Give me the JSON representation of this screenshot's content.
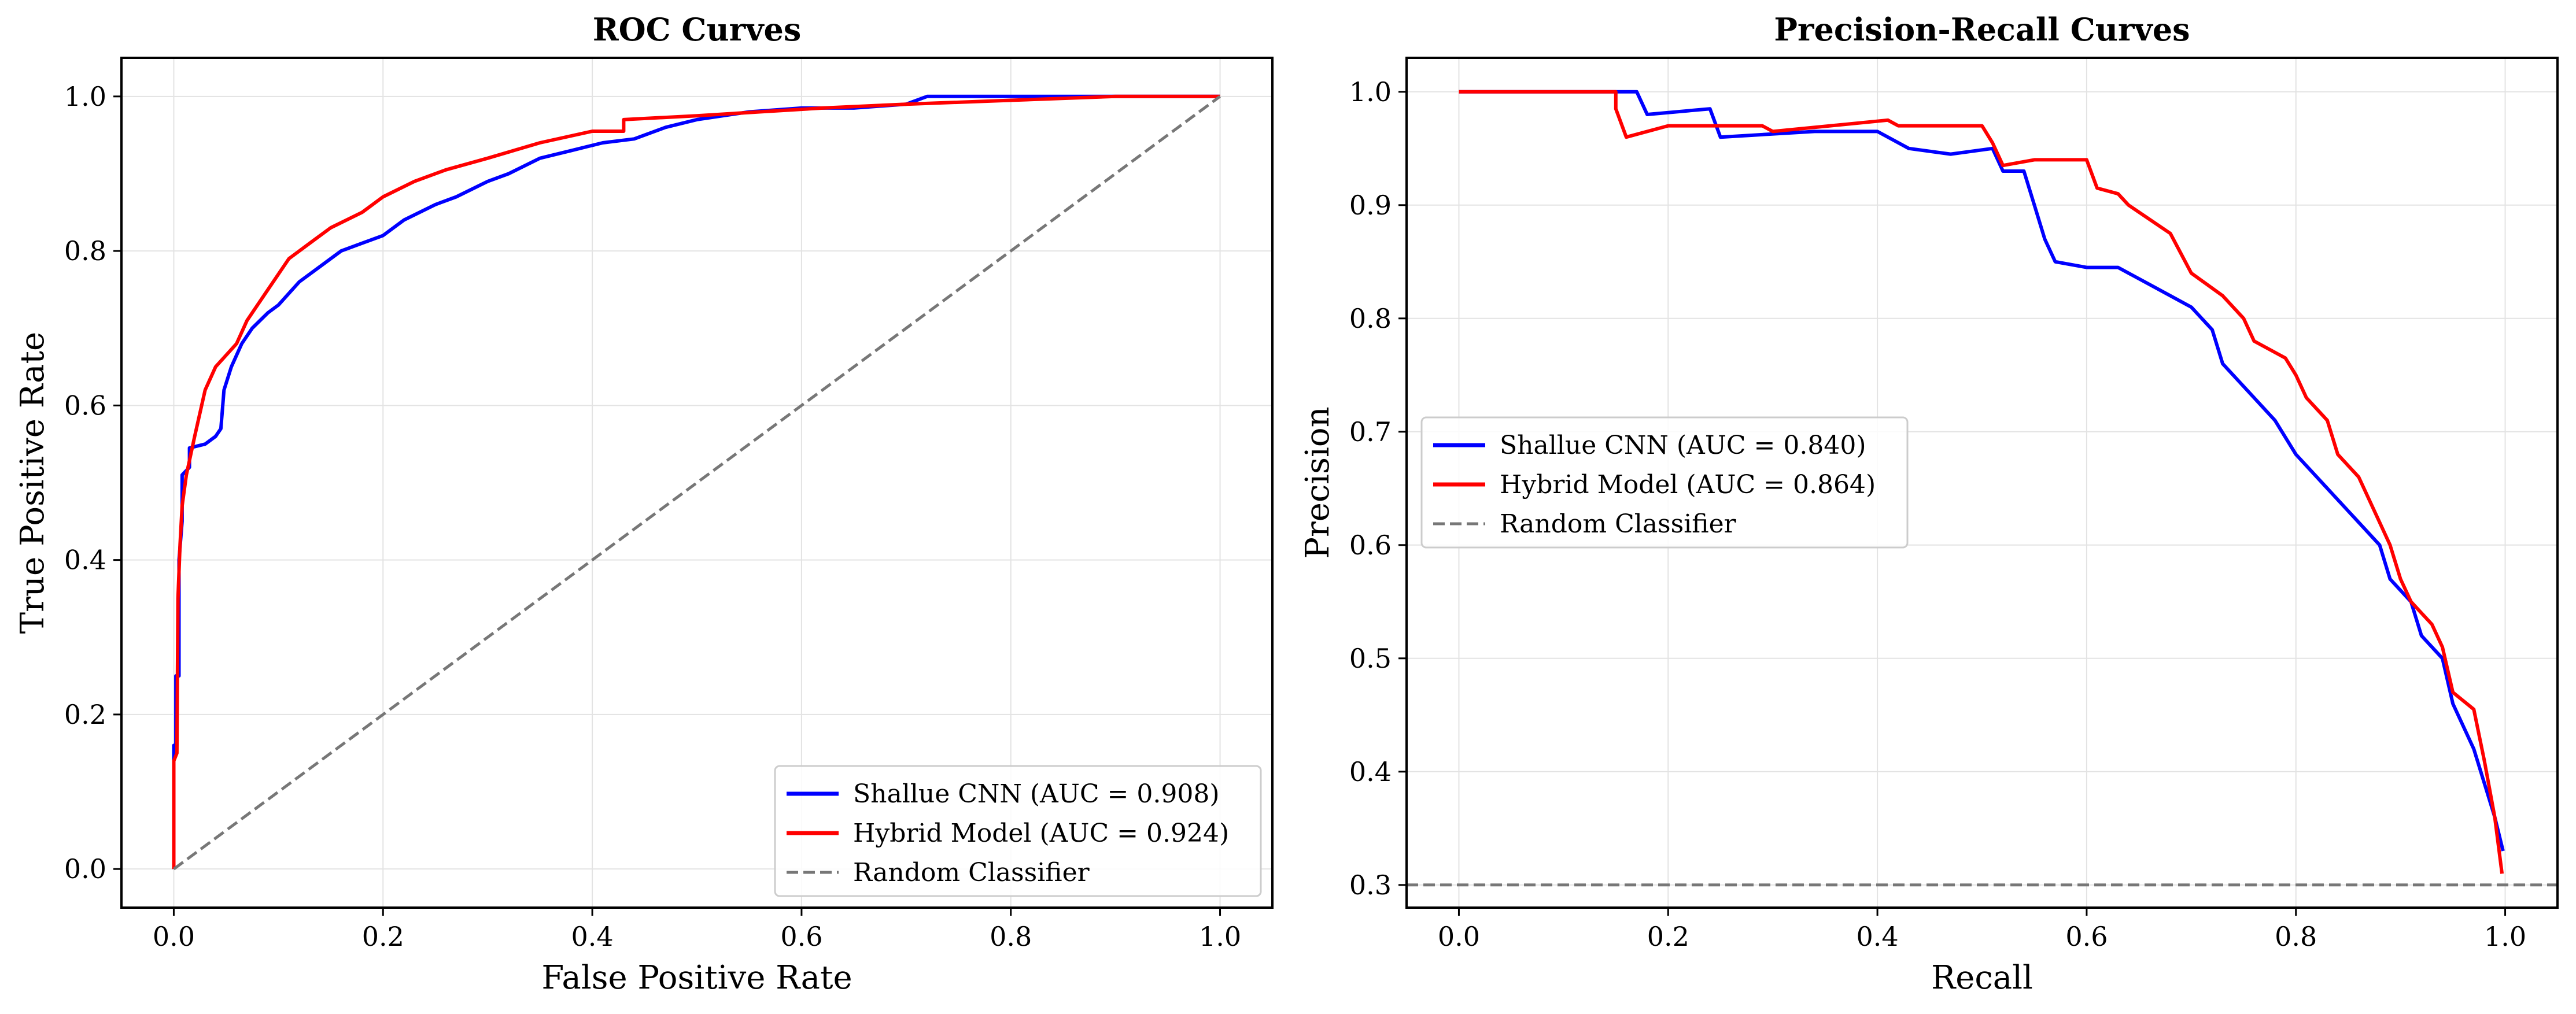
{
  "chart_data": [
    {
      "type": "line",
      "title": "ROC Curves",
      "xlabel": "False Positive Rate",
      "ylabel": "True Positive Rate",
      "xlim": [
        -0.05,
        1.05
      ],
      "ylim": [
        -0.05,
        1.05
      ],
      "xticks": [
        "0.0",
        "0.2",
        "0.4",
        "0.6",
        "0.8",
        "1.0"
      ],
      "yticks": [
        "0.0",
        "0.2",
        "0.4",
        "0.6",
        "0.8",
        "1.0"
      ],
      "grid": true,
      "legend_position": "lower-right",
      "series": [
        {
          "name": "Shallue CNN (AUC = 0.908)",
          "color": "#0000ff",
          "style": "solid",
          "points": [
            [
              0,
              0
            ],
            [
              0,
              0.16
            ],
            [
              0.002,
              0.16
            ],
            [
              0.002,
              0.25
            ],
            [
              0.005,
              0.25
            ],
            [
              0.005,
              0.4
            ],
            [
              0.008,
              0.45
            ],
            [
              0.008,
              0.51
            ],
            [
              0.015,
              0.52
            ],
            [
              0.015,
              0.545
            ],
            [
              0.03,
              0.55
            ],
            [
              0.04,
              0.56
            ],
            [
              0.045,
              0.57
            ],
            [
              0.048,
              0.62
            ],
            [
              0.055,
              0.65
            ],
            [
              0.065,
              0.68
            ],
            [
              0.075,
              0.7
            ],
            [
              0.09,
              0.72
            ],
            [
              0.1,
              0.73
            ],
            [
              0.12,
              0.76
            ],
            [
              0.14,
              0.78
            ],
            [
              0.16,
              0.8
            ],
            [
              0.18,
              0.81
            ],
            [
              0.2,
              0.82
            ],
            [
              0.22,
              0.84
            ],
            [
              0.25,
              0.86
            ],
            [
              0.27,
              0.87
            ],
            [
              0.3,
              0.89
            ],
            [
              0.32,
              0.9
            ],
            [
              0.35,
              0.92
            ],
            [
              0.38,
              0.93
            ],
            [
              0.41,
              0.94
            ],
            [
              0.44,
              0.945
            ],
            [
              0.47,
              0.96
            ],
            [
              0.5,
              0.97
            ],
            [
              0.55,
              0.98
            ],
            [
              0.6,
              0.985
            ],
            [
              0.65,
              0.985
            ],
            [
              0.7,
              0.99
            ],
            [
              0.72,
              1.0
            ],
            [
              1.0,
              1.0
            ]
          ]
        },
        {
          "name": "Hybrid Model (AUC = 0.924)",
          "color": "#ff0000",
          "style": "solid",
          "points": [
            [
              0,
              0
            ],
            [
              0,
              0.14
            ],
            [
              0.003,
              0.15
            ],
            [
              0.004,
              0.35
            ],
            [
              0.006,
              0.42
            ],
            [
              0.008,
              0.47
            ],
            [
              0.012,
              0.51
            ],
            [
              0.02,
              0.56
            ],
            [
              0.03,
              0.62
            ],
            [
              0.04,
              0.65
            ],
            [
              0.06,
              0.68
            ],
            [
              0.07,
              0.71
            ],
            [
              0.09,
              0.75
            ],
            [
              0.11,
              0.79
            ],
            [
              0.13,
              0.81
            ],
            [
              0.15,
              0.83
            ],
            [
              0.18,
              0.85
            ],
            [
              0.2,
              0.87
            ],
            [
              0.23,
              0.89
            ],
            [
              0.26,
              0.905
            ],
            [
              0.3,
              0.92
            ],
            [
              0.35,
              0.94
            ],
            [
              0.4,
              0.955
            ],
            [
              0.43,
              0.955
            ],
            [
              0.43,
              0.97
            ],
            [
              0.5,
              0.975
            ],
            [
              0.56,
              0.98
            ],
            [
              0.62,
              0.985
            ],
            [
              0.7,
              0.99
            ],
            [
              0.8,
              0.995
            ],
            [
              0.9,
              1.0
            ],
            [
              1.0,
              1.0
            ]
          ]
        },
        {
          "name": "Random Classifier",
          "color": "#777777",
          "style": "dashed",
          "points": [
            [
              0,
              0
            ],
            [
              1,
              1
            ]
          ]
        }
      ]
    },
    {
      "type": "line",
      "title": "Precision-Recall Curves",
      "xlabel": "Recall",
      "ylabel": "Precision",
      "xlim": [
        -0.05,
        1.05
      ],
      "ylim": [
        0.28,
        1.03
      ],
      "xticks": [
        "0.0",
        "0.2",
        "0.4",
        "0.6",
        "0.8",
        "1.0"
      ],
      "yticks": [
        "0.3",
        "0.4",
        "0.5",
        "0.6",
        "0.7",
        "0.8",
        "0.9",
        "1.0"
      ],
      "grid": true,
      "legend_position": "center-left",
      "series": [
        {
          "name": "Shallue CNN (AUC = 0.840)",
          "color": "#0000ff",
          "style": "solid",
          "points": [
            [
              0,
              1.0
            ],
            [
              0.17,
              1.0
            ],
            [
              0.18,
              0.98
            ],
            [
              0.24,
              0.985
            ],
            [
              0.25,
              0.96
            ],
            [
              0.34,
              0.965
            ],
            [
              0.4,
              0.965
            ],
            [
              0.43,
              0.95
            ],
            [
              0.47,
              0.945
            ],
            [
              0.51,
              0.95
            ],
            [
              0.52,
              0.93
            ],
            [
              0.54,
              0.93
            ],
            [
              0.55,
              0.9
            ],
            [
              0.56,
              0.87
            ],
            [
              0.57,
              0.85
            ],
            [
              0.6,
              0.845
            ],
            [
              0.63,
              0.845
            ],
            [
              0.66,
              0.83
            ],
            [
              0.7,
              0.81
            ],
            [
              0.72,
              0.79
            ],
            [
              0.73,
              0.76
            ],
            [
              0.76,
              0.73
            ],
            [
              0.78,
              0.71
            ],
            [
              0.8,
              0.68
            ],
            [
              0.83,
              0.65
            ],
            [
              0.85,
              0.63
            ],
            [
              0.87,
              0.61
            ],
            [
              0.88,
              0.6
            ],
            [
              0.89,
              0.57
            ],
            [
              0.91,
              0.55
            ],
            [
              0.92,
              0.52
            ],
            [
              0.94,
              0.5
            ],
            [
              0.95,
              0.46
            ],
            [
              0.97,
              0.42
            ],
            [
              0.98,
              0.39
            ],
            [
              0.99,
              0.36
            ],
            [
              0.998,
              0.33
            ]
          ]
        },
        {
          "name": "Hybrid Model (AUC = 0.864)",
          "color": "#ff0000",
          "style": "solid",
          "points": [
            [
              0,
              1.0
            ],
            [
              0.15,
              1.0
            ],
            [
              0.15,
              0.985
            ],
            [
              0.16,
              0.96
            ],
            [
              0.2,
              0.97
            ],
            [
              0.29,
              0.97
            ],
            [
              0.3,
              0.965
            ],
            [
              0.41,
              0.975
            ],
            [
              0.42,
              0.97
            ],
            [
              0.5,
              0.97
            ],
            [
              0.51,
              0.955
            ],
            [
              0.52,
              0.935
            ],
            [
              0.55,
              0.94
            ],
            [
              0.6,
              0.94
            ],
            [
              0.61,
              0.915
            ],
            [
              0.63,
              0.91
            ],
            [
              0.64,
              0.9
            ],
            [
              0.68,
              0.875
            ],
            [
              0.7,
              0.84
            ],
            [
              0.73,
              0.82
            ],
            [
              0.75,
              0.8
            ],
            [
              0.76,
              0.78
            ],
            [
              0.79,
              0.765
            ],
            [
              0.8,
              0.75
            ],
            [
              0.81,
              0.73
            ],
            [
              0.83,
              0.71
            ],
            [
              0.84,
              0.68
            ],
            [
              0.86,
              0.66
            ],
            [
              0.87,
              0.64
            ],
            [
              0.88,
              0.62
            ],
            [
              0.89,
              0.6
            ],
            [
              0.9,
              0.57
            ],
            [
              0.91,
              0.55
            ],
            [
              0.93,
              0.53
            ],
            [
              0.94,
              0.51
            ],
            [
              0.95,
              0.47
            ],
            [
              0.97,
              0.455
            ],
            [
              0.98,
              0.41
            ],
            [
              0.99,
              0.36
            ],
            [
              0.997,
              0.31
            ]
          ]
        },
        {
          "name": "Random Classifier",
          "color": "#777777",
          "style": "dashed",
          "points": [
            [
              -0.05,
              0.3
            ],
            [
              1.05,
              0.3
            ]
          ]
        }
      ]
    }
  ]
}
